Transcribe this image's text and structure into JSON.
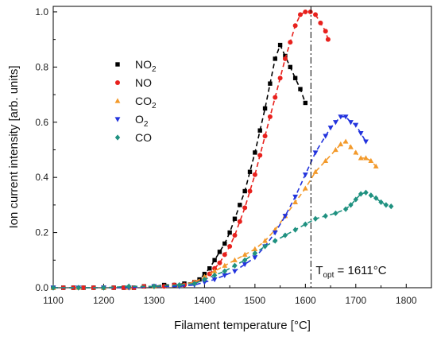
{
  "chart_data": {
    "type": "scatter",
    "title": "",
    "xlabel": "Filament temperature [°C]",
    "ylabel": "Ion current intensity [arb. units]",
    "xlim": [
      1100,
      1850
    ],
    "ylim": [
      0,
      1.02
    ],
    "x_ticks": [
      1100,
      1200,
      1300,
      1400,
      1500,
      1600,
      1700,
      1800
    ],
    "y_ticks": [
      0.0,
      0.2,
      0.4,
      0.6,
      0.8,
      1.0
    ],
    "x_tick_labels": [
      "1100",
      "1200",
      "1300",
      "1400",
      "1500",
      "1600",
      "1700",
      "1800"
    ],
    "y_tick_labels": [
      "0.0",
      "0.2",
      "0.4",
      "0.6",
      "0.8",
      "1.0"
    ],
    "grid": false,
    "legend_position": "left-middle",
    "series": [
      {
        "name": "NO2",
        "name_main": "NO",
        "name_sub": "2",
        "color": "#000000",
        "marker": "square",
        "x": [
          1100,
          1120,
          1140,
          1160,
          1180,
          1200,
          1220,
          1240,
          1260,
          1280,
          1300,
          1320,
          1340,
          1360,
          1380,
          1390,
          1400,
          1410,
          1420,
          1430,
          1440,
          1450,
          1460,
          1470,
          1480,
          1490,
          1500,
          1510,
          1520,
          1530,
          1540,
          1550,
          1560,
          1570,
          1580,
          1590,
          1600
        ],
        "y": [
          0.0,
          0.0,
          0.0,
          0.0,
          0.0,
          0.0,
          0.0,
          0.0,
          0.0,
          0.005,
          0.005,
          0.01,
          0.01,
          0.015,
          0.02,
          0.03,
          0.05,
          0.07,
          0.1,
          0.13,
          0.16,
          0.2,
          0.25,
          0.3,
          0.35,
          0.42,
          0.49,
          0.57,
          0.65,
          0.74,
          0.83,
          0.88,
          0.84,
          0.8,
          0.76,
          0.72,
          0.67
        ]
      },
      {
        "name": "NO",
        "name_main": "NO",
        "name_sub": "",
        "color": "#e8211d",
        "marker": "circle",
        "x": [
          1100,
          1120,
          1140,
          1160,
          1180,
          1200,
          1220,
          1240,
          1260,
          1280,
          1300,
          1320,
          1340,
          1360,
          1380,
          1400,
          1410,
          1420,
          1430,
          1440,
          1450,
          1460,
          1470,
          1480,
          1490,
          1500,
          1510,
          1520,
          1530,
          1540,
          1550,
          1560,
          1570,
          1580,
          1590,
          1600,
          1610,
          1620,
          1630,
          1640,
          1645
        ],
        "y": [
          0.0,
          0.0,
          0.0,
          0.0,
          0.0,
          0.0,
          0.0,
          0.0,
          0.0,
          0.005,
          0.005,
          0.005,
          0.01,
          0.01,
          0.02,
          0.03,
          0.05,
          0.07,
          0.09,
          0.12,
          0.15,
          0.19,
          0.24,
          0.29,
          0.35,
          0.41,
          0.48,
          0.55,
          0.62,
          0.69,
          0.76,
          0.83,
          0.89,
          0.95,
          0.99,
          1.0,
          1.0,
          0.99,
          0.96,
          0.93,
          0.9
        ]
      },
      {
        "name": "CO2",
        "name_main": "CO",
        "name_sub": "2",
        "color": "#f39a2b",
        "marker": "triangle-up",
        "x": [
          1100,
          1150,
          1200,
          1250,
          1300,
          1350,
          1380,
          1400,
          1420,
          1440,
          1460,
          1480,
          1500,
          1520,
          1540,
          1560,
          1580,
          1600,
          1620,
          1640,
          1660,
          1670,
          1680,
          1690,
          1700,
          1710,
          1720,
          1730,
          1740
        ],
        "y": [
          0.0,
          0.0,
          0.0,
          0.0,
          0.005,
          0.01,
          0.02,
          0.04,
          0.06,
          0.08,
          0.1,
          0.12,
          0.14,
          0.17,
          0.21,
          0.26,
          0.31,
          0.36,
          0.42,
          0.46,
          0.5,
          0.52,
          0.53,
          0.51,
          0.49,
          0.47,
          0.47,
          0.46,
          0.44
        ]
      },
      {
        "name": "O2",
        "name_main": "O",
        "name_sub": "2",
        "color": "#2233dd",
        "marker": "triangle-down",
        "x": [
          1100,
          1150,
          1200,
          1250,
          1300,
          1350,
          1380,
          1400,
          1420,
          1440,
          1460,
          1480,
          1500,
          1520,
          1540,
          1560,
          1580,
          1600,
          1620,
          1640,
          1650,
          1660,
          1670,
          1680,
          1690,
          1700,
          1710,
          1720
        ],
        "y": [
          0.0,
          0.0,
          0.0,
          0.0,
          0.005,
          0.005,
          0.01,
          0.02,
          0.03,
          0.045,
          0.06,
          0.085,
          0.11,
          0.15,
          0.2,
          0.26,
          0.33,
          0.41,
          0.49,
          0.55,
          0.58,
          0.6,
          0.62,
          0.62,
          0.6,
          0.59,
          0.56,
          0.53
        ]
      },
      {
        "name": "CO",
        "name_main": "CO",
        "name_sub": "",
        "color": "#1f9180",
        "marker": "diamond",
        "x": [
          1100,
          1150,
          1200,
          1250,
          1300,
          1350,
          1380,
          1400,
          1420,
          1440,
          1460,
          1480,
          1500,
          1520,
          1540,
          1560,
          1580,
          1600,
          1620,
          1640,
          1660,
          1680,
          1690,
          1700,
          1710,
          1720,
          1730,
          1740,
          1750,
          1760,
          1770
        ],
        "y": [
          0.0,
          0.0,
          0.0,
          0.005,
          0.005,
          0.01,
          0.015,
          0.03,
          0.045,
          0.06,
          0.08,
          0.1,
          0.125,
          0.15,
          0.17,
          0.19,
          0.21,
          0.23,
          0.25,
          0.26,
          0.27,
          0.285,
          0.3,
          0.32,
          0.34,
          0.345,
          0.335,
          0.325,
          0.31,
          0.3,
          0.295
        ]
      }
    ],
    "annotations": [
      {
        "type": "vline",
        "x": 1611,
        "label_main": "T",
        "label_sub": "opt",
        "label_rest": " = 1611",
        "label_unit": "°C"
      }
    ]
  }
}
